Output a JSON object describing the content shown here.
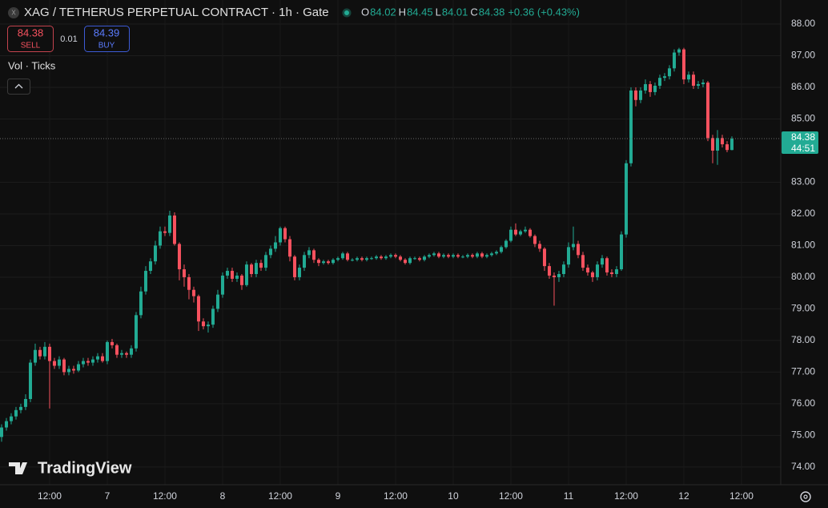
{
  "chart_data": {
    "type": "candlestick",
    "title": "XAG / TETHERUS PERPETUAL CONTRACT · 1h · Gate",
    "ohlc_legend": [
      {
        "label": "O",
        "value": "84.02"
      },
      {
        "label": "H",
        "value": "84.45"
      },
      {
        "label": "L",
        "value": "84.01"
      },
      {
        "label": "C",
        "value": "84.38"
      }
    ],
    "change": "+0.36 (+0.43%)",
    "sell_price": "84.38",
    "sell_label": "SELL",
    "spread": "0.01",
    "buy_price": "84.39",
    "buy_label": "BUY",
    "indicator": "Vol · Ticks",
    "watermark": "TradingView",
    "last_price": 84.38,
    "countdown": "44:51",
    "up_color": "#22ab94",
    "down_color": "#f7525f",
    "grid": true,
    "xlim": [
      -0.33,
      162.17
    ],
    "xticks": [
      {
        "value": 10,
        "label": "12:00"
      },
      {
        "value": 22,
        "label": "7"
      },
      {
        "value": 34,
        "label": "12:00"
      },
      {
        "value": 46,
        "label": "8"
      },
      {
        "value": 58,
        "label": "12:00"
      },
      {
        "value": 70,
        "label": "9"
      },
      {
        "value": 82,
        "label": "12:00"
      },
      {
        "value": 94,
        "label": "10"
      },
      {
        "value": 106,
        "label": "12:00"
      },
      {
        "value": 118,
        "label": "11"
      },
      {
        "value": 130,
        "label": "12:00"
      },
      {
        "value": 142,
        "label": "12"
      },
      {
        "value": 154,
        "label": "12:00"
      }
    ],
    "ylim": [
      73.44,
      88.76
    ],
    "yticks": [
      {
        "value": 74,
        "label": "74.00"
      },
      {
        "value": 75,
        "label": "75.00"
      },
      {
        "value": 76,
        "label": "76.00"
      },
      {
        "value": 77,
        "label": "77.00"
      },
      {
        "value": 78,
        "label": "78.00"
      },
      {
        "value": 79,
        "label": "79.00"
      },
      {
        "value": 80,
        "label": "80.00"
      },
      {
        "value": 81,
        "label": "81.00"
      },
      {
        "value": 82,
        "label": "82.00"
      },
      {
        "value": 83,
        "label": "83.00"
      },
      {
        "value": 85,
        "label": "85.00"
      },
      {
        "value": 86,
        "label": "86.00"
      },
      {
        "value": 87,
        "label": "87.00"
      },
      {
        "value": 88,
        "label": "88.00"
      }
    ],
    "open": [
      74.95,
      75.25,
      75.45,
      75.6,
      75.8,
      75.9,
      76.15,
      77.3,
      77.7,
      77.5,
      77.8,
      77.35,
      77.2,
      77.4,
      77.0,
      77.1,
      77.05,
      77.25,
      77.35,
      77.3,
      77.4,
      77.5,
      77.35,
      77.95,
      77.85,
      77.55,
      77.6,
      77.55,
      77.75,
      78.8,
      79.55,
      80.2,
      80.5,
      81.0,
      81.45,
      81.4,
      81.95,
      81.05,
      80.25,
      80.0,
      79.6,
      79.4,
      78.6,
      78.45,
      78.5,
      79.0,
      79.45,
      80.05,
      80.2,
      79.95,
      80.05,
      79.75,
      80.4,
      80.1,
      80.45,
      80.3,
      80.7,
      80.9,
      81.1,
      81.55,
      81.2,
      80.65,
      80.0,
      80.3,
      80.7,
      80.85,
      80.55,
      80.45,
      80.5,
      80.45,
      80.55,
      80.6,
      80.75,
      80.55,
      80.55,
      80.6,
      80.55,
      80.6,
      80.6,
      80.65,
      80.6,
      80.65,
      80.7,
      80.65,
      80.55,
      80.45,
      80.6,
      80.6,
      80.55,
      80.65,
      80.7,
      80.75,
      80.65,
      80.7,
      80.65,
      80.7,
      80.65,
      80.65,
      80.7,
      80.65,
      80.75,
      80.65,
      80.7,
      80.75,
      80.8,
      80.95,
      81.15,
      81.5,
      81.35,
      81.45,
      81.5,
      81.3,
      81.05,
      80.9,
      80.35,
      80.05,
      80.0,
      80.1,
      80.4,
      80.95,
      81.05,
      80.7,
      80.3,
      80.15,
      80.0,
      80.4,
      80.6,
      80.15,
      80.1,
      80.25,
      81.35,
      83.6,
      85.9,
      85.6,
      85.9,
      86.1,
      85.85,
      86.05,
      86.3,
      86.35,
      86.6,
      87.1,
      87.2,
      86.25,
      86.4,
      86.05,
      86.1,
      86.15,
      84.4,
      84.0,
      84.4,
      84.2,
      84.02
    ],
    "high": [
      75.35,
      75.55,
      75.7,
      75.9,
      76.0,
      76.3,
      77.4,
      77.9,
      77.8,
      77.95,
      77.9,
      77.45,
      77.5,
      77.45,
      77.2,
      77.2,
      77.35,
      77.45,
      77.45,
      77.5,
      77.6,
      77.6,
      78.0,
      78.05,
      77.9,
      77.7,
      77.65,
      77.85,
      78.9,
      79.7,
      80.35,
      80.6,
      81.15,
      81.6,
      81.6,
      82.1,
      82.05,
      81.1,
      80.4,
      80.1,
      79.7,
      79.45,
      78.7,
      78.6,
      79.1,
      79.6,
      80.15,
      80.3,
      80.3,
      80.15,
      80.1,
      80.5,
      80.45,
      80.55,
      80.55,
      80.8,
      81.0,
      81.3,
      81.6,
      81.6,
      81.3,
      80.7,
      80.4,
      80.8,
      80.95,
      80.9,
      80.6,
      80.55,
      80.55,
      80.6,
      80.65,
      80.8,
      80.8,
      80.6,
      80.65,
      80.65,
      80.65,
      80.65,
      80.7,
      80.7,
      80.7,
      80.75,
      80.75,
      80.7,
      80.6,
      80.65,
      80.65,
      80.65,
      80.7,
      80.75,
      80.8,
      80.8,
      80.75,
      80.75,
      80.75,
      80.75,
      80.7,
      80.75,
      80.75,
      80.8,
      80.8,
      80.75,
      80.8,
      80.85,
      81.0,
      81.2,
      81.6,
      81.7,
      81.5,
      81.6,
      81.55,
      81.35,
      81.15,
      80.95,
      80.45,
      80.15,
      80.2,
      80.5,
      81.1,
      81.6,
      81.15,
      80.8,
      80.4,
      80.2,
      80.5,
      80.7,
      80.65,
      80.25,
      80.35,
      81.45,
      83.7,
      86.0,
      86.0,
      86.0,
      86.25,
      86.2,
      86.15,
      86.4,
      86.45,
      86.7,
      87.2,
      87.25,
      87.25,
      86.5,
      86.5,
      86.2,
      86.25,
      86.2,
      84.5,
      84.65,
      84.5,
      84.3,
      84.45
    ],
    "low": [
      74.8,
      75.15,
      75.35,
      75.5,
      75.7,
      75.8,
      76.05,
      77.2,
      77.4,
      77.4,
      75.85,
      77.1,
      77.1,
      76.9,
      76.9,
      76.95,
      77.0,
      77.15,
      77.2,
      77.2,
      77.3,
      77.3,
      77.25,
      77.75,
      77.45,
      77.45,
      77.45,
      77.45,
      77.65,
      78.7,
      79.45,
      80.1,
      80.4,
      80.9,
      81.3,
      81.3,
      81.0,
      79.9,
      79.7,
      79.3,
      79.2,
      78.3,
      78.35,
      78.25,
      78.4,
      78.9,
      79.35,
      79.95,
      79.85,
      79.85,
      79.6,
      79.7,
      80.0,
      80.0,
      80.2,
      80.2,
      80.6,
      80.8,
      81.0,
      81.1,
      80.5,
      79.9,
      79.9,
      80.2,
      80.6,
      80.45,
      80.35,
      80.4,
      80.4,
      80.4,
      80.5,
      80.55,
      80.5,
      80.5,
      80.5,
      80.5,
      80.5,
      80.55,
      80.55,
      80.55,
      80.55,
      80.6,
      80.6,
      80.5,
      80.4,
      80.4,
      80.55,
      80.5,
      80.5,
      80.6,
      80.65,
      80.6,
      80.6,
      80.6,
      80.6,
      80.6,
      80.6,
      80.6,
      80.6,
      80.6,
      80.6,
      80.6,
      80.65,
      80.7,
      80.75,
      80.9,
      81.1,
      81.3,
      81.3,
      81.4,
      81.25,
      80.95,
      80.8,
      80.2,
      79.95,
      79.1,
      79.85,
      80.0,
      80.3,
      80.85,
      80.6,
      80.2,
      80.05,
      79.85,
      79.9,
      80.3,
      80.05,
      80.0,
      80.0,
      80.2,
      81.25,
      83.5,
      85.4,
      85.5,
      85.8,
      85.7,
      85.75,
      85.95,
      86.2,
      86.25,
      86.5,
      87.0,
      86.1,
      86.15,
      85.95,
      85.95,
      86.0,
      84.3,
      83.6,
      83.55,
      84.1,
      83.95,
      84.01
    ],
    "close": [
      75.25,
      75.45,
      75.6,
      75.8,
      75.9,
      76.15,
      77.3,
      77.7,
      77.5,
      77.8,
      77.35,
      77.2,
      77.4,
      77.0,
      77.1,
      77.05,
      77.25,
      77.35,
      77.3,
      77.4,
      77.5,
      77.35,
      77.95,
      77.85,
      77.55,
      77.6,
      77.55,
      77.75,
      78.8,
      79.55,
      80.2,
      80.5,
      81.0,
      81.45,
      81.4,
      81.95,
      81.05,
      80.25,
      80.0,
      79.6,
      79.4,
      78.6,
      78.45,
      78.5,
      79.0,
      79.45,
      80.05,
      80.2,
      79.95,
      80.05,
      79.75,
      80.4,
      80.1,
      80.45,
      80.3,
      80.7,
      80.9,
      81.1,
      81.55,
      81.2,
      80.65,
      80.0,
      80.3,
      80.7,
      80.85,
      80.55,
      80.45,
      80.5,
      80.45,
      80.55,
      80.6,
      80.75,
      80.55,
      80.55,
      80.6,
      80.55,
      80.6,
      80.6,
      80.65,
      80.6,
      80.65,
      80.7,
      80.65,
      80.55,
      80.45,
      80.6,
      80.6,
      80.55,
      80.65,
      80.7,
      80.75,
      80.65,
      80.7,
      80.65,
      80.7,
      80.65,
      80.65,
      80.7,
      80.65,
      80.75,
      80.65,
      80.7,
      80.75,
      80.8,
      80.95,
      81.15,
      81.5,
      81.35,
      81.45,
      81.5,
      81.3,
      81.05,
      80.9,
      80.35,
      80.05,
      80.0,
      80.1,
      80.4,
      80.95,
      81.05,
      80.7,
      80.3,
      80.15,
      80.0,
      80.4,
      80.6,
      80.15,
      80.1,
      80.25,
      81.35,
      83.6,
      85.9,
      85.6,
      85.9,
      86.1,
      85.85,
      86.05,
      86.3,
      86.35,
      86.6,
      87.1,
      87.2,
      86.25,
      86.4,
      86.05,
      86.1,
      86.15,
      84.4,
      84.0,
      84.4,
      84.2,
      84.02,
      84.38
    ]
  }
}
